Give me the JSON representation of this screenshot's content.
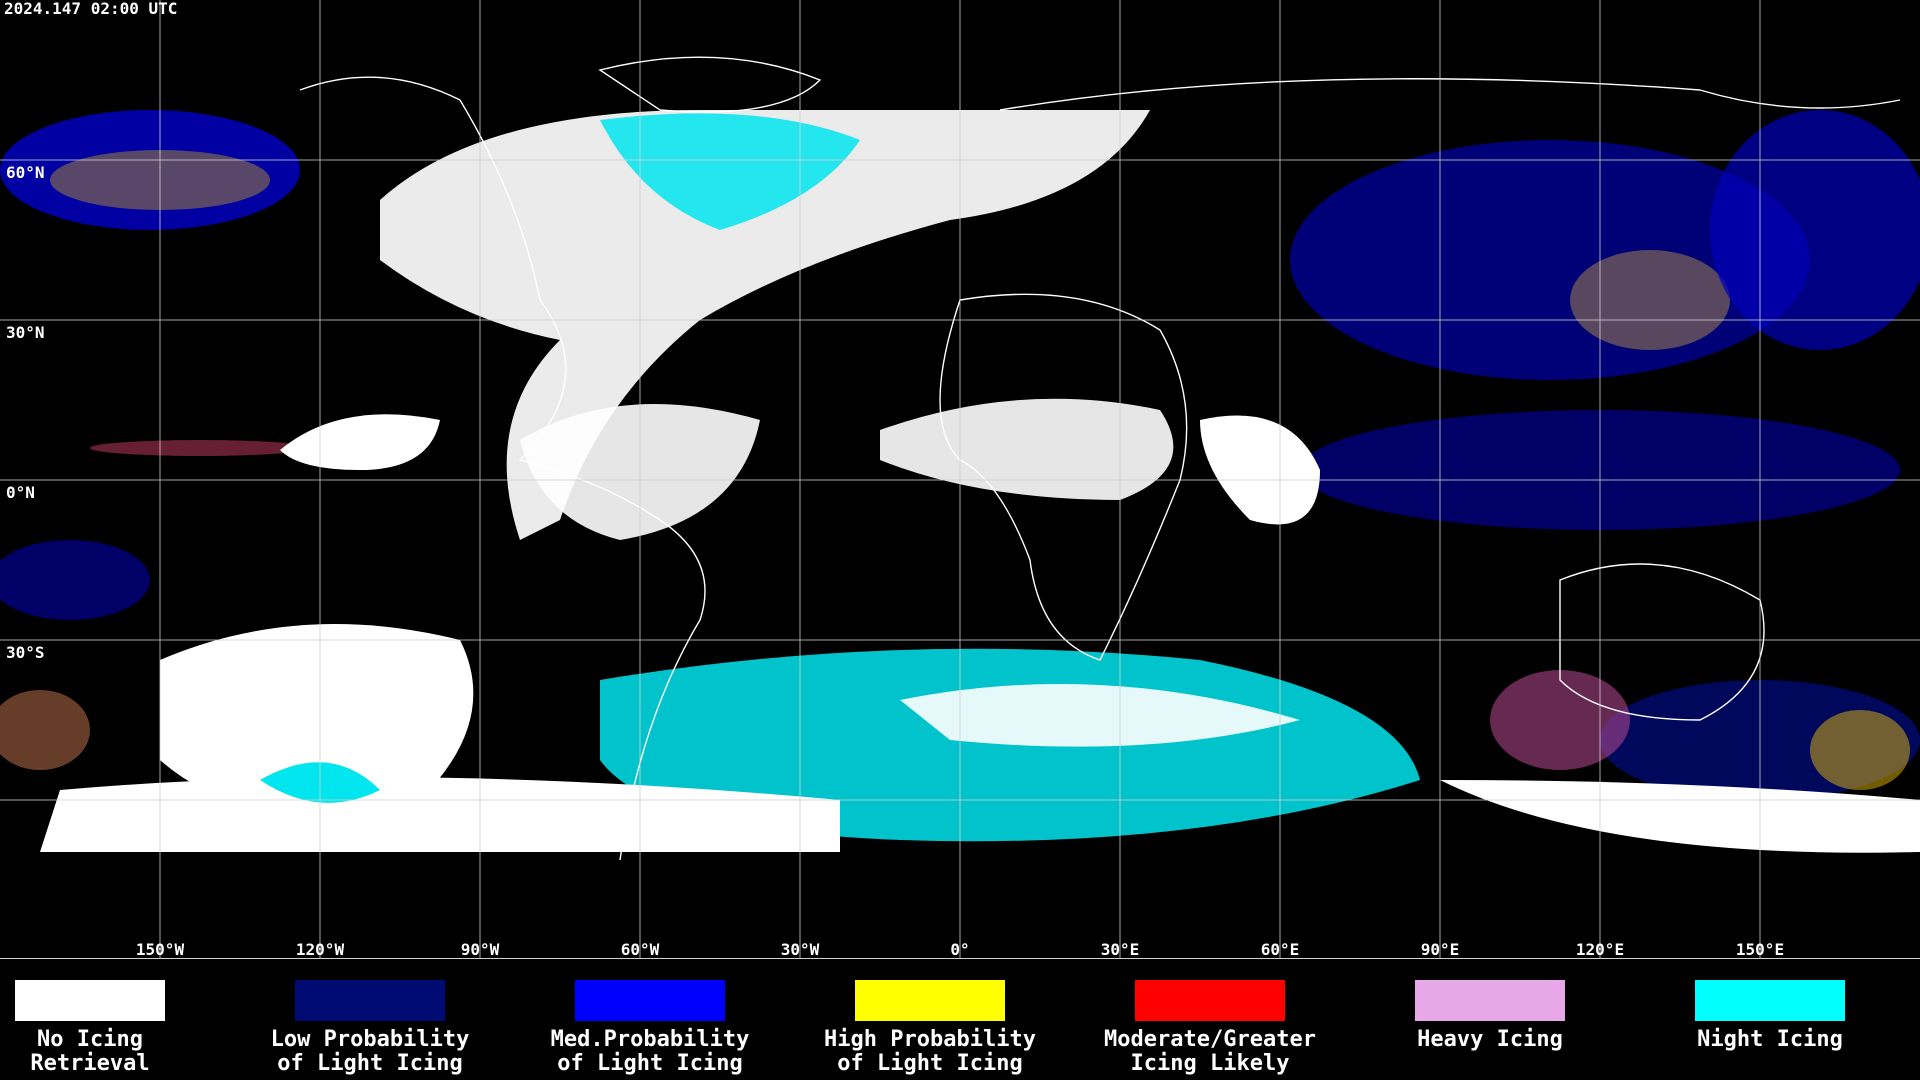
{
  "header": {
    "timestamp": "2024.147 02:00 UTC"
  },
  "map": {
    "lat_labels": [
      "60°N",
      "30°N",
      "0°N",
      "30°S"
    ],
    "lon_labels": [
      "150°W",
      "120°W",
      "90°W",
      "60°W",
      "30°W",
      "0°",
      "30°E",
      "60°E",
      "90°E",
      "120°E",
      "150°E"
    ]
  },
  "legend": [
    {
      "label_lines": [
        "No Icing",
        "Retrieval"
      ],
      "color": "#ffffff"
    },
    {
      "label_lines": [
        "Low Probability",
        "of Light Icing"
      ],
      "color": "#000a73"
    },
    {
      "label_lines": [
        "Med.Probability",
        "of Light Icing"
      ],
      "color": "#0000ff"
    },
    {
      "label_lines": [
        "High Probability",
        "of Light Icing"
      ],
      "color": "#ffff00"
    },
    {
      "label_lines": [
        "Moderate/Greater",
        "Icing Likely"
      ],
      "color": "#ff0000"
    },
    {
      "label_lines": [
        "Heavy Icing"
      ],
      "color": "#e6a8e6"
    },
    {
      "label_lines": [
        "Night Icing"
      ],
      "color": "#00ffff"
    }
  ]
}
